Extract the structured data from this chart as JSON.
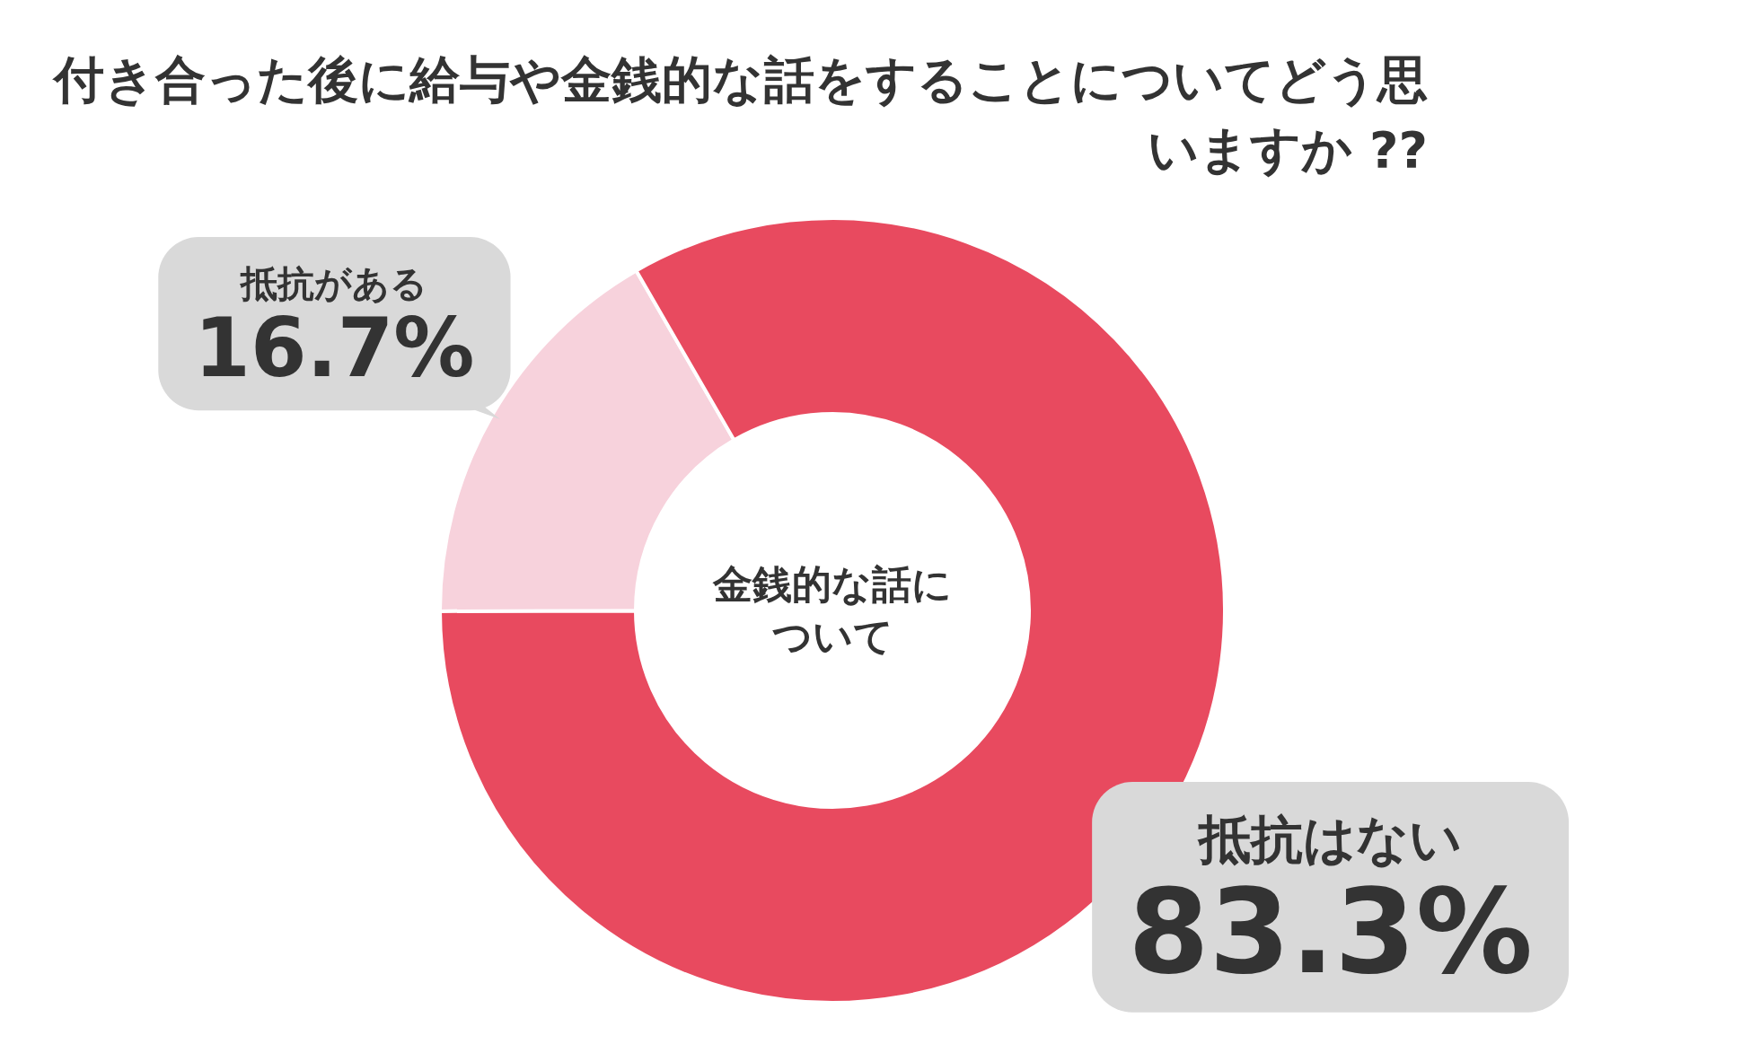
{
  "chart_data": {
    "type": "donut",
    "title": "付き合った後に給与や金銭的な話をすることについてどう思いますか ??",
    "categories": [
      "抵抗がある",
      "抵抗はない"
    ],
    "values": [
      16.7,
      83.3
    ],
    "colors": [
      "#f7d2dc",
      "#e84a5f"
    ],
    "value_labels": [
      "16.7%",
      "83.3%"
    ],
    "annotations": [
      "金銭的な話について"
    ]
  }
}
